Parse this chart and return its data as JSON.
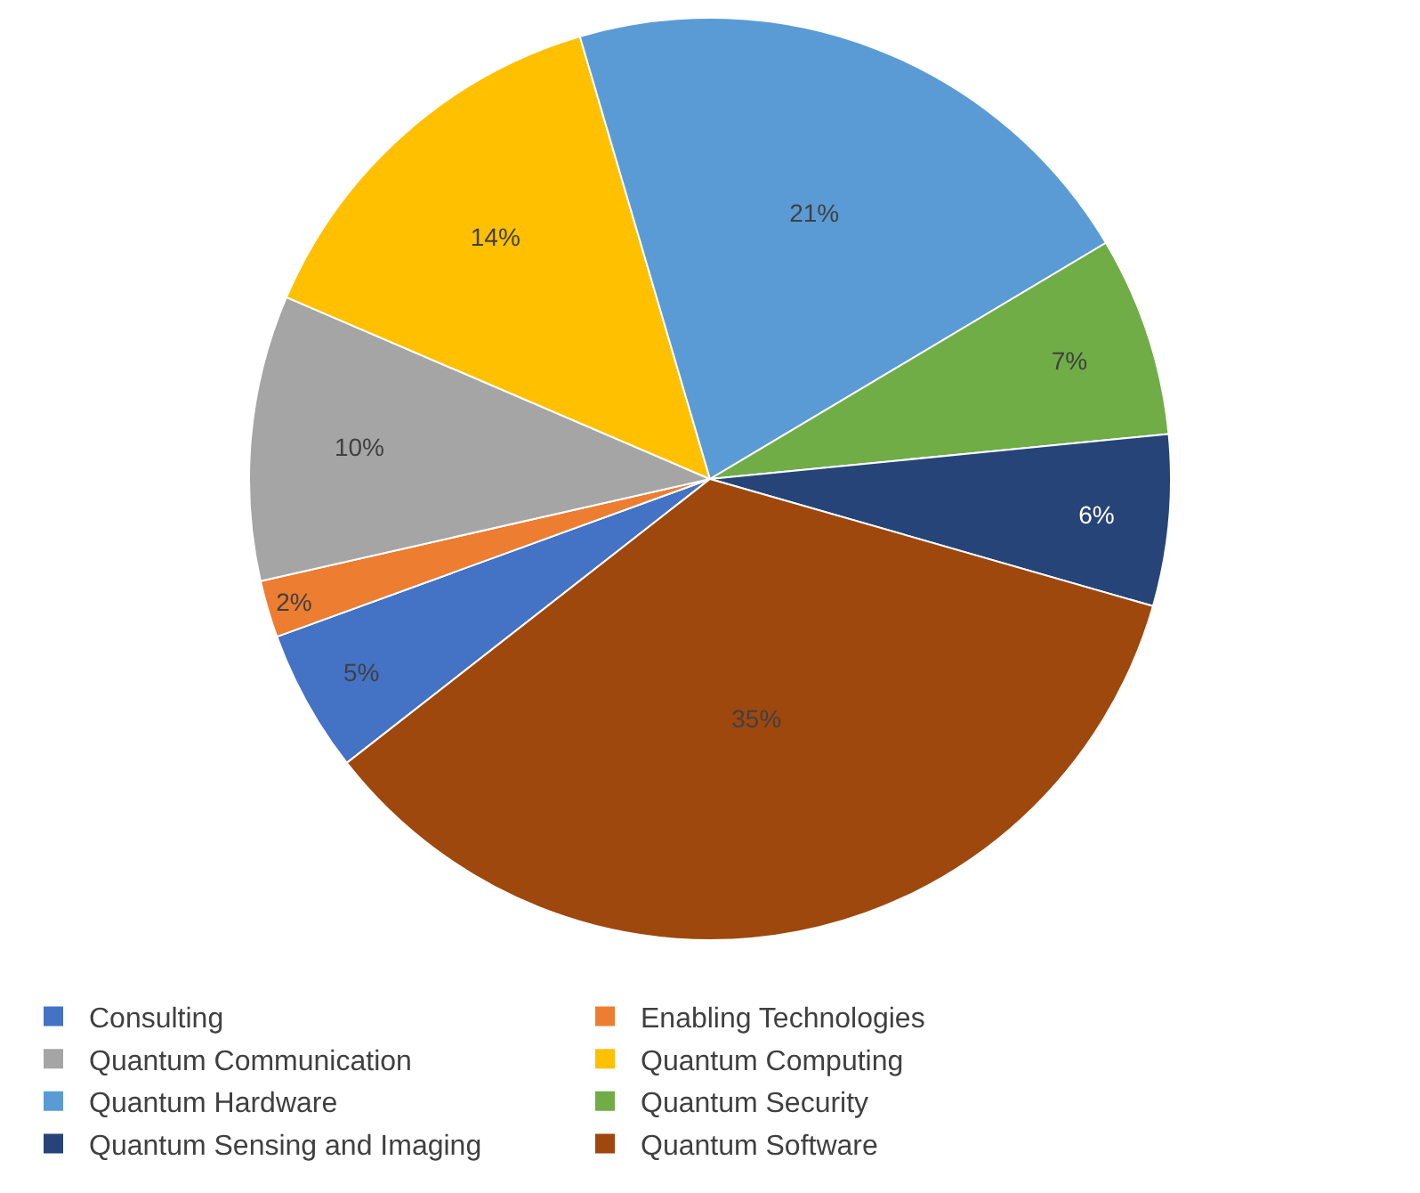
{
  "chart_data": {
    "type": "pie",
    "categories": [
      "Consulting",
      "Enabling Technologies",
      "Quantum Communication",
      "Quantum Computing",
      "Quantum Hardware",
      "Quantum Security",
      "Quantum Sensing and Imaging",
      "Quantum Software"
    ],
    "values": [
      5,
      2,
      10,
      14,
      21,
      7,
      6,
      35
    ],
    "colors": [
      "#4472c4",
      "#ed7d31",
      "#a5a5a5",
      "#ffc000",
      "#5b9bd5",
      "#70ad47",
      "#264478",
      "#9e480e"
    ],
    "value_labels": [
      "5%",
      "2%",
      "10%",
      "14%",
      "21%",
      "7%",
      "6%",
      "35%"
    ],
    "legend": "bottom"
  }
}
